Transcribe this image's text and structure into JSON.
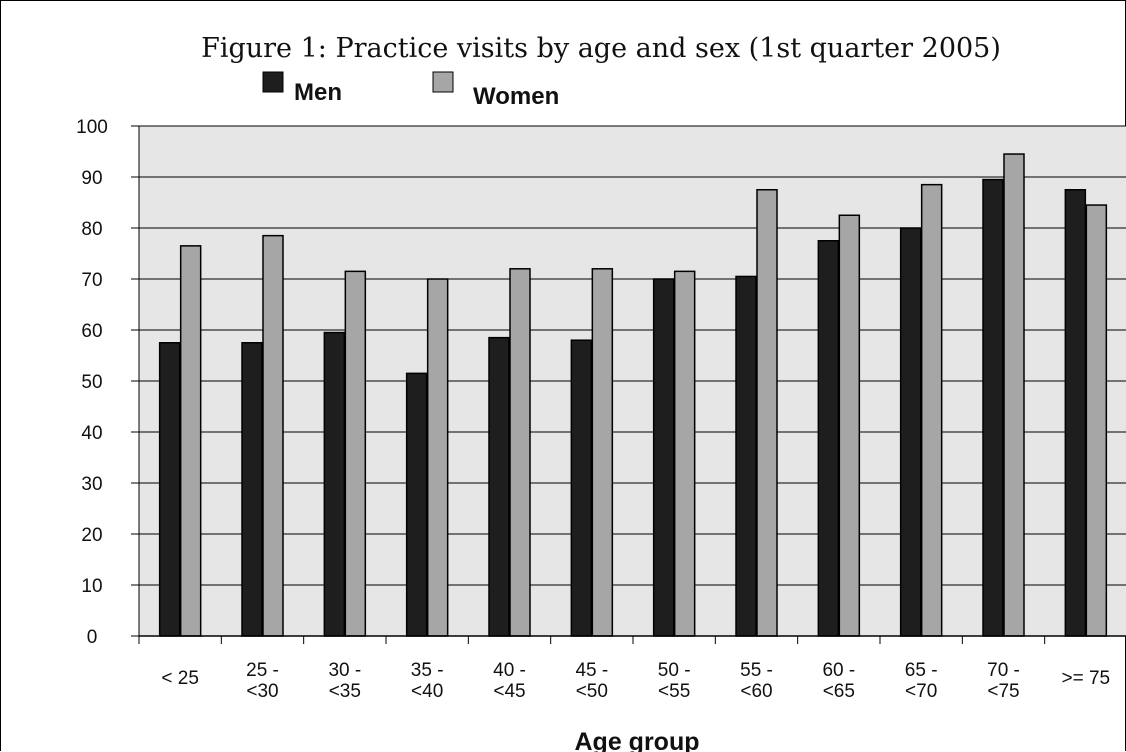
{
  "chart_data": {
    "type": "bar",
    "title": "Figure 1: Practice visits by age and sex (1st quarter 2005)",
    "xlabel": "Age group",
    "ylabel": "",
    "ylim": [
      0,
      100
    ],
    "yticks": [
      0,
      10,
      20,
      30,
      40,
      50,
      60,
      70,
      80,
      90,
      100
    ],
    "grid": true,
    "legend_position": "top",
    "categories": [
      "< 25",
      "25 - <30",
      "30 - <35",
      "35 - <40",
      "40 - <45",
      "45 - <50",
      "50 - <55",
      "55 - <60",
      "60 - <65",
      "65 - <70",
      "70 - <75",
      ">= 75"
    ],
    "series": [
      {
        "name": "Men",
        "color": "#1e1e1e",
        "values": [
          57.5,
          57.5,
          59.5,
          51.5,
          58.5,
          58,
          70,
          70.5,
          77.5,
          80,
          89.5,
          87.5
        ]
      },
      {
        "name": "Women",
        "color": "#a6a6a6",
        "values": [
          76.5,
          78.5,
          71.5,
          70,
          72,
          72,
          71.5,
          87.5,
          82.5,
          88.5,
          94.5,
          84.5
        ]
      }
    ]
  }
}
